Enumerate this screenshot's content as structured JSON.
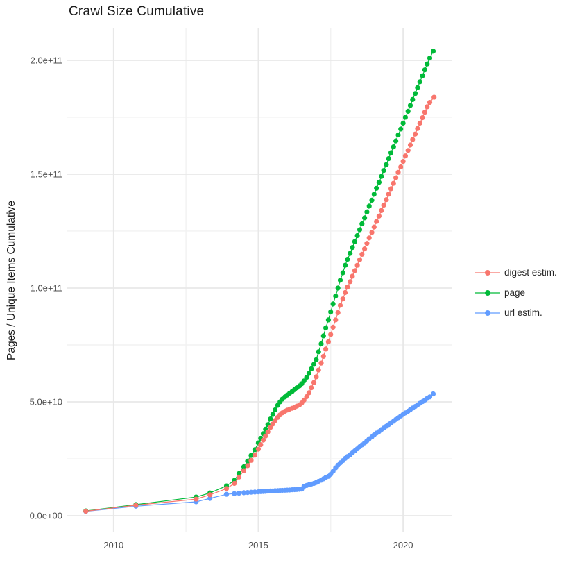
{
  "chart_data": {
    "type": "scatter",
    "title": "Crawl Size Cumulative",
    "xlabel": "",
    "ylabel": "Pages / Unique Items Cumulative",
    "legend_position": "right",
    "grid": "major and minor, light gray on white",
    "point_format": "[year, cumulative_items_in_billions_1e9]",
    "xlim": [
      2008.4,
      2021.7
    ],
    "ylim": [
      -7,
      214
    ],
    "axes": {
      "x_ticks": [
        {
          "value": 2010,
          "label": "2010"
        },
        {
          "value": 2015,
          "label": "2015"
        },
        {
          "value": 2020,
          "label": "2020"
        }
      ],
      "x_minor": [
        2012.5,
        2017.5
      ],
      "y_ticks": [
        {
          "value": 0,
          "label": "0.0e+00"
        },
        {
          "value": 50,
          "label": "5.0e+10"
        },
        {
          "value": 100,
          "label": "1.0e+11"
        },
        {
          "value": 150,
          "label": "1.5e+11"
        },
        {
          "value": 200,
          "label": "2.0e+11"
        }
      ],
      "y_minor": [
        25,
        75,
        125,
        175
      ]
    },
    "series": [
      {
        "name": "digest estim.",
        "color": "#F8766D",
        "points": [
          [
            2009.04,
            2.0
          ],
          [
            2010.77,
            4.6
          ],
          [
            2012.85,
            7.3
          ],
          [
            2013.33,
            9.2
          ],
          [
            2013.9,
            11.9
          ],
          [
            2014.17,
            14.2
          ],
          [
            2014.33,
            17.0
          ],
          [
            2014.5,
            19.8
          ],
          [
            2014.63,
            22.0
          ],
          [
            2014.75,
            24.3
          ],
          [
            2014.88,
            26.6
          ],
          [
            2015.0,
            29.2
          ],
          [
            2015.08,
            31.2
          ],
          [
            2015.17,
            33.2
          ],
          [
            2015.25,
            35.0
          ],
          [
            2015.33,
            36.8
          ],
          [
            2015.42,
            38.8
          ],
          [
            2015.5,
            40.3
          ],
          [
            2015.58,
            41.8
          ],
          [
            2015.67,
            43.2
          ],
          [
            2015.75,
            44.3
          ],
          [
            2015.83,
            45.2
          ],
          [
            2015.92,
            45.9
          ],
          [
            2016.0,
            46.4
          ],
          [
            2016.08,
            46.8
          ],
          [
            2016.17,
            47.2
          ],
          [
            2016.25,
            47.6
          ],
          [
            2016.33,
            48.1
          ],
          [
            2016.42,
            48.7
          ],
          [
            2016.5,
            49.5
          ],
          [
            2016.58,
            50.8
          ],
          [
            2016.67,
            52.3
          ],
          [
            2016.75,
            54.0
          ],
          [
            2016.83,
            56.2
          ],
          [
            2016.92,
            58.5
          ],
          [
            2017.0,
            61.0
          ],
          [
            2017.08,
            64.0
          ],
          [
            2017.17,
            67.0
          ],
          [
            2017.25,
            70.0
          ],
          [
            2017.33,
            73.2
          ],
          [
            2017.42,
            76.4
          ],
          [
            2017.5,
            79.6
          ],
          [
            2017.58,
            82.8
          ],
          [
            2017.67,
            86.0
          ],
          [
            2017.75,
            89.2
          ],
          [
            2017.83,
            92.4
          ],
          [
            2017.92,
            95.2
          ],
          [
            2018.0,
            98.0
          ],
          [
            2018.08,
            100.4
          ],
          [
            2018.17,
            102.8
          ],
          [
            2018.25,
            105.2
          ],
          [
            2018.33,
            107.6
          ],
          [
            2018.42,
            110.0
          ],
          [
            2018.5,
            112.4
          ],
          [
            2018.58,
            114.8
          ],
          [
            2018.67,
            117.2
          ],
          [
            2018.75,
            119.6
          ],
          [
            2018.83,
            122.0
          ],
          [
            2018.92,
            124.4
          ],
          [
            2019.0,
            126.8
          ],
          [
            2019.08,
            129.2
          ],
          [
            2019.17,
            131.6
          ],
          [
            2019.25,
            134.0
          ],
          [
            2019.33,
            136.4
          ],
          [
            2019.42,
            138.8
          ],
          [
            2019.5,
            141.2
          ],
          [
            2019.58,
            143.6
          ],
          [
            2019.67,
            146.0
          ],
          [
            2019.75,
            148.4
          ],
          [
            2019.83,
            150.8
          ],
          [
            2019.92,
            153.2
          ],
          [
            2020.0,
            155.6
          ],
          [
            2020.08,
            158.0
          ],
          [
            2020.17,
            160.4
          ],
          [
            2020.25,
            162.8
          ],
          [
            2020.33,
            165.2
          ],
          [
            2020.42,
            167.6
          ],
          [
            2020.5,
            170.0
          ],
          [
            2020.58,
            172.4
          ],
          [
            2020.67,
            174.8
          ],
          [
            2020.75,
            177.2
          ],
          [
            2020.83,
            179.6
          ],
          [
            2020.92,
            181.5
          ],
          [
            2021.07,
            183.8
          ]
        ]
      },
      {
        "name": "page",
        "color": "#00BA38",
        "points": [
          [
            2009.04,
            2.1
          ],
          [
            2010.77,
            4.9
          ],
          [
            2012.85,
            8.2
          ],
          [
            2013.33,
            10.0
          ],
          [
            2013.9,
            13.1
          ],
          [
            2014.17,
            15.5
          ],
          [
            2014.33,
            18.5
          ],
          [
            2014.5,
            21.5
          ],
          [
            2014.63,
            24.0
          ],
          [
            2014.75,
            26.5
          ],
          [
            2014.88,
            29.0
          ],
          [
            2015.0,
            32.0
          ],
          [
            2015.08,
            34.0
          ],
          [
            2015.17,
            36.0
          ],
          [
            2015.25,
            38.0
          ],
          [
            2015.33,
            40.0
          ],
          [
            2015.42,
            42.5
          ],
          [
            2015.5,
            44.5
          ],
          [
            2015.58,
            46.5
          ],
          [
            2015.67,
            48.5
          ],
          [
            2015.75,
            50.0
          ],
          [
            2015.83,
            51.2
          ],
          [
            2015.92,
            52.2
          ],
          [
            2016.0,
            53.0
          ],
          [
            2016.08,
            53.8
          ],
          [
            2016.17,
            54.6
          ],
          [
            2016.25,
            55.4
          ],
          [
            2016.33,
            56.2
          ],
          [
            2016.42,
            57.0
          ],
          [
            2016.5,
            58.0
          ],
          [
            2016.58,
            59.2
          ],
          [
            2016.67,
            60.8
          ],
          [
            2016.75,
            62.5
          ],
          [
            2016.83,
            64.5
          ],
          [
            2016.92,
            66.5
          ],
          [
            2017.0,
            68.5
          ],
          [
            2017.08,
            72.0
          ],
          [
            2017.17,
            75.5
          ],
          [
            2017.25,
            79.0
          ],
          [
            2017.33,
            82.5
          ],
          [
            2017.42,
            86.0
          ],
          [
            2017.5,
            89.5
          ],
          [
            2017.58,
            93.0
          ],
          [
            2017.67,
            96.5
          ],
          [
            2017.75,
            100.0
          ],
          [
            2017.83,
            103.4
          ],
          [
            2017.92,
            106.7
          ],
          [
            2018.0,
            110.0
          ],
          [
            2018.08,
            112.6
          ],
          [
            2018.17,
            115.2
          ],
          [
            2018.25,
            117.8
          ],
          [
            2018.33,
            120.4
          ],
          [
            2018.42,
            123.0
          ],
          [
            2018.5,
            125.6
          ],
          [
            2018.58,
            128.2
          ],
          [
            2018.67,
            130.8
          ],
          [
            2018.75,
            133.4
          ],
          [
            2018.83,
            136.0
          ],
          [
            2018.92,
            138.6
          ],
          [
            2019.0,
            141.2
          ],
          [
            2019.08,
            143.8
          ],
          [
            2019.17,
            146.4
          ],
          [
            2019.25,
            149.0
          ],
          [
            2019.33,
            151.6
          ],
          [
            2019.42,
            154.2
          ],
          [
            2019.5,
            156.8
          ],
          [
            2019.58,
            159.4
          ],
          [
            2019.67,
            162.0
          ],
          [
            2019.75,
            164.6
          ],
          [
            2019.83,
            167.2
          ],
          [
            2019.92,
            169.8
          ],
          [
            2020.0,
            172.4
          ],
          [
            2020.08,
            175.0
          ],
          [
            2020.17,
            177.6
          ],
          [
            2020.25,
            180.2
          ],
          [
            2020.33,
            182.8
          ],
          [
            2020.42,
            185.4
          ],
          [
            2020.5,
            188.0
          ],
          [
            2020.58,
            190.6
          ],
          [
            2020.67,
            193.2
          ],
          [
            2020.75,
            195.8
          ],
          [
            2020.83,
            198.4
          ],
          [
            2020.92,
            201.0
          ],
          [
            2021.04,
            204.0
          ]
        ]
      },
      {
        "name": "url estim.",
        "color": "#619CFF",
        "points": [
          [
            2009.04,
            1.9
          ],
          [
            2010.77,
            4.2
          ],
          [
            2012.85,
            6.1
          ],
          [
            2013.33,
            7.6
          ],
          [
            2013.9,
            9.4
          ],
          [
            2014.17,
            9.7
          ],
          [
            2014.33,
            9.9
          ],
          [
            2014.5,
            10.1
          ],
          [
            2014.63,
            10.2
          ],
          [
            2014.75,
            10.3
          ],
          [
            2014.88,
            10.4
          ],
          [
            2015.0,
            10.5
          ],
          [
            2015.08,
            10.6
          ],
          [
            2015.17,
            10.65
          ],
          [
            2015.25,
            10.7
          ],
          [
            2015.33,
            10.8
          ],
          [
            2015.42,
            10.85
          ],
          [
            2015.5,
            10.9
          ],
          [
            2015.58,
            11.0
          ],
          [
            2015.67,
            11.05
          ],
          [
            2015.75,
            11.1
          ],
          [
            2015.83,
            11.15
          ],
          [
            2015.92,
            11.2
          ],
          [
            2016.0,
            11.25
          ],
          [
            2016.08,
            11.3
          ],
          [
            2016.17,
            11.4
          ],
          [
            2016.25,
            11.45
          ],
          [
            2016.33,
            11.5
          ],
          [
            2016.42,
            11.6
          ],
          [
            2016.5,
            11.7
          ],
          [
            2016.58,
            12.9
          ],
          [
            2016.67,
            13.3
          ],
          [
            2016.75,
            13.6
          ],
          [
            2016.83,
            13.9
          ],
          [
            2016.92,
            14.2
          ],
          [
            2017.0,
            14.6
          ],
          [
            2017.08,
            15.1
          ],
          [
            2017.17,
            15.6
          ],
          [
            2017.25,
            16.2
          ],
          [
            2017.33,
            16.8
          ],
          [
            2017.42,
            17.3
          ],
          [
            2017.5,
            18.2
          ],
          [
            2017.58,
            19.5
          ],
          [
            2017.67,
            21.0
          ],
          [
            2017.75,
            22.2
          ],
          [
            2017.83,
            23.2
          ],
          [
            2017.92,
            24.2
          ],
          [
            2018.0,
            25.2
          ],
          [
            2018.08,
            26.0
          ],
          [
            2018.17,
            26.8
          ],
          [
            2018.25,
            27.6
          ],
          [
            2018.33,
            28.5
          ],
          [
            2018.42,
            29.4
          ],
          [
            2018.5,
            30.3
          ],
          [
            2018.58,
            31.1
          ],
          [
            2018.67,
            32.0
          ],
          [
            2018.75,
            32.9
          ],
          [
            2018.83,
            33.8
          ],
          [
            2018.92,
            34.6
          ],
          [
            2019.0,
            35.5
          ],
          [
            2019.08,
            36.3
          ],
          [
            2019.17,
            37.0
          ],
          [
            2019.25,
            37.8
          ],
          [
            2019.33,
            38.5
          ],
          [
            2019.42,
            39.3
          ],
          [
            2019.5,
            40.0
          ],
          [
            2019.58,
            40.8
          ],
          [
            2019.67,
            41.5
          ],
          [
            2019.75,
            42.3
          ],
          [
            2019.83,
            43.0
          ],
          [
            2019.92,
            43.8
          ],
          [
            2020.0,
            44.5
          ],
          [
            2020.08,
            45.2
          ],
          [
            2020.17,
            45.9
          ],
          [
            2020.25,
            46.6
          ],
          [
            2020.33,
            47.3
          ],
          [
            2020.42,
            48.0
          ],
          [
            2020.5,
            48.7
          ],
          [
            2020.58,
            49.4
          ],
          [
            2020.67,
            50.1
          ],
          [
            2020.75,
            50.8
          ],
          [
            2020.83,
            51.5
          ],
          [
            2020.92,
            52.2
          ],
          [
            2021.04,
            53.5
          ]
        ]
      }
    ]
  },
  "legend": {
    "items": [
      {
        "label": "digest estim.",
        "color": "#F8766D"
      },
      {
        "label": "page",
        "color": "#00BA38"
      },
      {
        "label": "url estim.",
        "color": "#619CFF"
      }
    ]
  },
  "colors": {
    "background": "#ffffff",
    "grid_major": "#e8e8e8",
    "grid_minor": "#f2f2f2",
    "axis_text": "#4d4d4d",
    "title_text": "#1a1a1a"
  }
}
